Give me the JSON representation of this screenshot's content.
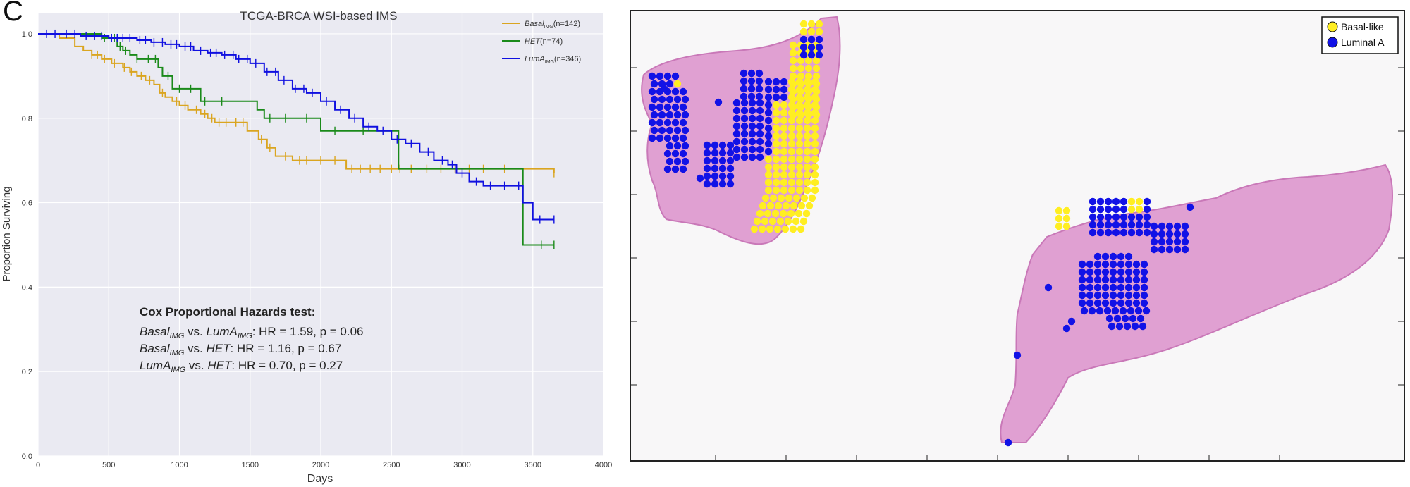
{
  "panel_letter": "C",
  "chart_data": {
    "type": "line",
    "title": "TCGA-BRCA WSI-based IMS",
    "xlabel": "Days",
    "ylabel": "Proportion Surviving",
    "xlim": [
      0,
      4000
    ],
    "ylim": [
      0.0,
      1.05
    ],
    "x_ticks": [
      "0",
      "500",
      "1000",
      "1500",
      "2000",
      "2500",
      "3000",
      "3500",
      "4000"
    ],
    "y_ticks": [
      "0.0",
      "0.2",
      "0.4",
      "0.6",
      "0.8",
      "1.0"
    ],
    "grid": true,
    "legend_position": "top-right",
    "series": [
      {
        "name": "Basal",
        "name_sub": "IMG",
        "name_suffix": "(n=142)",
        "color": "#daa520",
        "x": [
          0,
          150,
          260,
          320,
          380,
          450,
          520,
          600,
          650,
          700,
          760,
          820,
          860,
          900,
          950,
          1000,
          1060,
          1150,
          1200,
          1250,
          1300,
          1480,
          1560,
          1620,
          1680,
          1800,
          1950,
          2180,
          2300,
          2450,
          2700,
          3000,
          3650
        ],
        "y": [
          1.0,
          0.99,
          0.97,
          0.96,
          0.95,
          0.94,
          0.93,
          0.92,
          0.91,
          0.9,
          0.89,
          0.88,
          0.86,
          0.85,
          0.84,
          0.83,
          0.82,
          0.81,
          0.8,
          0.79,
          0.79,
          0.77,
          0.75,
          0.73,
          0.71,
          0.7,
          0.7,
          0.68,
          0.68,
          0.68,
          0.68,
          0.68,
          0.67
        ],
        "censor_x": [
          380,
          420,
          470,
          540,
          610,
          660,
          730,
          790,
          880,
          980,
          1040,
          1120,
          1180,
          1230,
          1280,
          1330,
          1400,
          1450,
          1580,
          1640,
          1750,
          1850,
          1900,
          2000,
          2100,
          2220,
          2280,
          2350,
          2420,
          2500,
          2560,
          2640,
          2750,
          2850,
          2950,
          3050,
          3150,
          3300,
          3650
        ]
      },
      {
        "name": "HET",
        "name_sub": "",
        "name_suffix": "(n=74)",
        "color": "#1a8a1a",
        "x": [
          0,
          450,
          560,
          600,
          650,
          700,
          850,
          880,
          950,
          1150,
          1550,
          1600,
          2000,
          2550,
          3430,
          3650
        ],
        "y": [
          1.0,
          0.99,
          0.97,
          0.96,
          0.95,
          0.94,
          0.92,
          0.9,
          0.87,
          0.84,
          0.82,
          0.8,
          0.77,
          0.68,
          0.5,
          0.5
        ],
        "censor_x": [
          470,
          540,
          580,
          620,
          700,
          780,
          830,
          920,
          1000,
          1080,
          1180,
          1300,
          1640,
          1750,
          1900,
          2100,
          2300,
          3560,
          3650
        ]
      },
      {
        "name": "LumA",
        "name_sub": "IMG",
        "name_suffix": "(n=346)",
        "color": "#1010e0",
        "x": [
          0,
          150,
          300,
          500,
          700,
          800,
          900,
          1000,
          1100,
          1200,
          1300,
          1400,
          1500,
          1600,
          1700,
          1800,
          1900,
          2000,
          2100,
          2200,
          2300,
          2400,
          2500,
          2600,
          2700,
          2800,
          2900,
          2960,
          3050,
          3150,
          3250,
          3430,
          3500,
          3650
        ],
        "y": [
          1.0,
          1.0,
          0.995,
          0.99,
          0.985,
          0.98,
          0.975,
          0.97,
          0.96,
          0.955,
          0.95,
          0.94,
          0.93,
          0.91,
          0.89,
          0.87,
          0.86,
          0.84,
          0.82,
          0.8,
          0.78,
          0.77,
          0.75,
          0.74,
          0.72,
          0.7,
          0.69,
          0.67,
          0.65,
          0.64,
          0.64,
          0.6,
          0.56,
          0.56
        ],
        "censor_x": [
          60,
          120,
          200,
          260,
          340,
          400,
          450,
          520,
          560,
          600,
          650,
          720,
          760,
          820,
          880,
          940,
          980,
          1040,
          1080,
          1150,
          1220,
          1260,
          1320,
          1380,
          1420,
          1480,
          1540,
          1620,
          1680,
          1740,
          1820,
          1880,
          1940,
          2040,
          2140,
          2240,
          2340,
          2440,
          2540,
          2640,
          2760,
          2860,
          2930,
          3000,
          3100,
          3200,
          3300,
          3400,
          3550,
          3650
        ]
      }
    ],
    "annotation": {
      "heading": "Cox Proportional Hazards test:",
      "lines": [
        {
          "a": "Basal",
          "a_sub": "IMG",
          "vs": " vs. ",
          "b": "LumA",
          "b_sub": "IMG",
          "stat": ": HR = 1.59, p = 0.06"
        },
        {
          "a": "Basal",
          "a_sub": "IMG",
          "vs": " vs. ",
          "b": "HET",
          "b_sub": "",
          "stat": ": HR = 1.16, p = 0.67"
        },
        {
          "a": "LumA",
          "a_sub": "IMG",
          "vs": " vs. ",
          "b": "HET",
          "b_sub": "",
          "stat": ": HR = 0.70, p = 0.27"
        }
      ]
    }
  },
  "wsi": {
    "legend": [
      {
        "label": "Basal-like",
        "color": "#ffee22"
      },
      {
        "label": "Luminal A",
        "color": "#1212e6"
      }
    ],
    "tissue_color": "#e0a0d2",
    "tissue_dark_color": "#c978b8"
  }
}
